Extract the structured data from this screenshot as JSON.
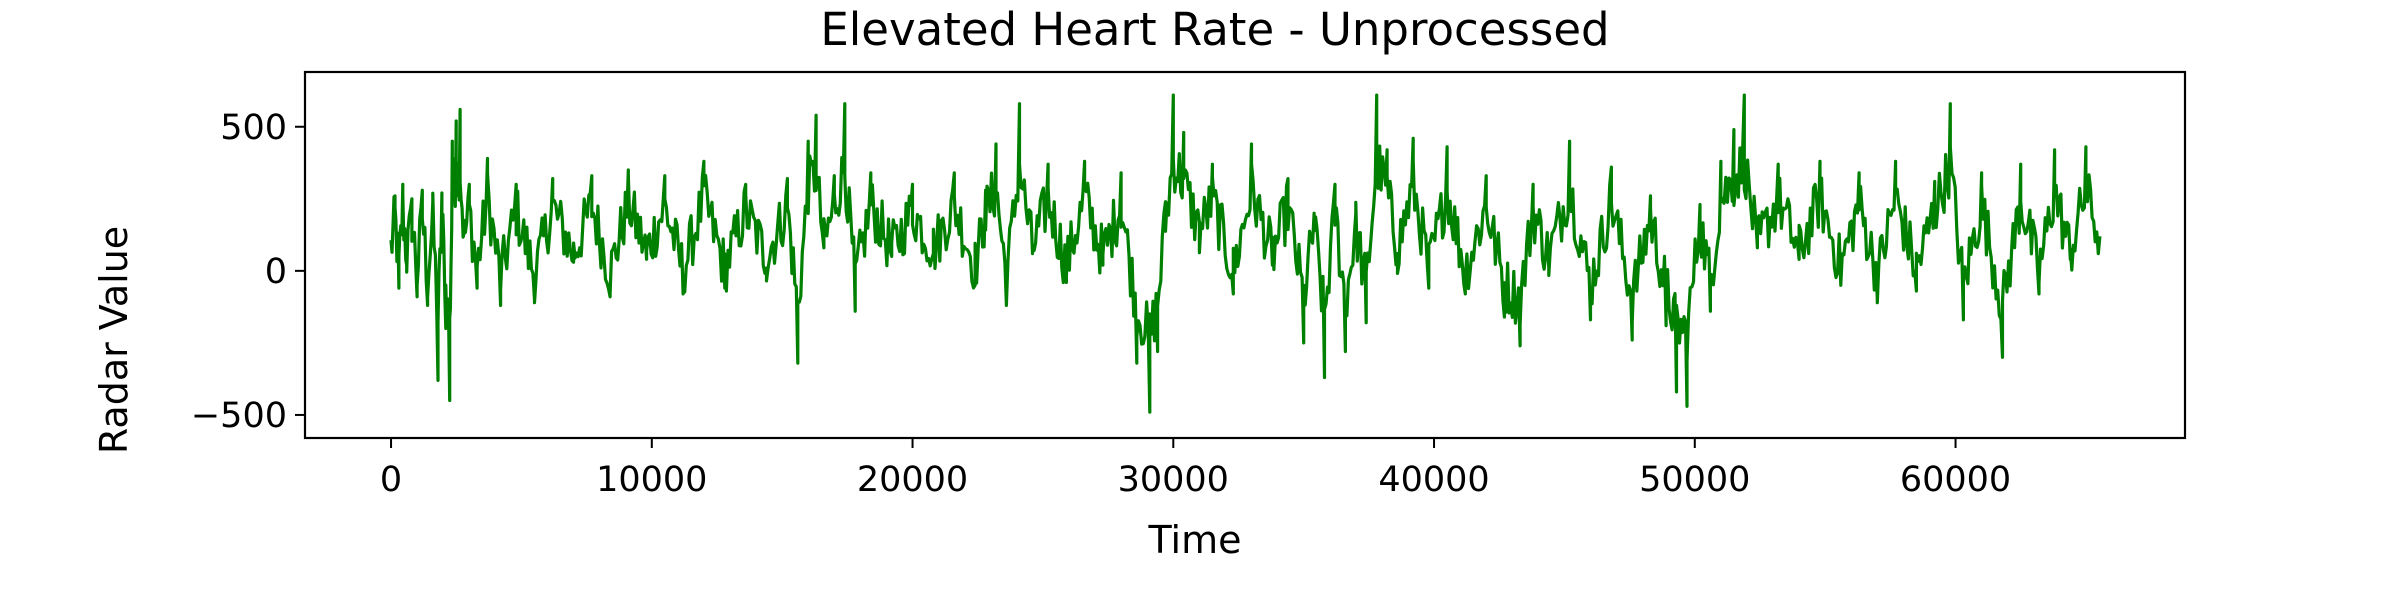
{
  "chart_data": {
    "type": "line",
    "title": "Elevated Heart Rate - Unprocessed",
    "xlabel": "Time",
    "ylabel": "Radar Value",
    "xlim": [
      -3300,
      68800
    ],
    "ylim": [
      -580,
      690
    ],
    "xticks": [
      0,
      10000,
      20000,
      30000,
      40000,
      50000,
      60000
    ],
    "xtick_labels": [
      "0",
      "10000",
      "20000",
      "30000",
      "40000",
      "50000",
      "60000"
    ],
    "yticks": [
      -500,
      0,
      500
    ],
    "ytick_labels": [
      "−500",
      "0",
      "500"
    ],
    "grid": false,
    "legend": "none",
    "series": [
      {
        "color": "#008000",
        "x_range": [
          0,
          65535
        ],
        "points": [
          [
            0,
            60
          ],
          [
            150,
            260
          ],
          [
            300,
            -60
          ],
          [
            450,
            300
          ],
          [
            600,
            20
          ],
          [
            800,
            250
          ],
          [
            1000,
            -90
          ],
          [
            1200,
            280
          ],
          [
            1400,
            -120
          ],
          [
            1600,
            240
          ],
          [
            1800,
            -380
          ],
          [
            1950,
            270
          ],
          [
            2100,
            -200
          ],
          [
            2250,
            -450
          ],
          [
            2350,
            450
          ],
          [
            2500,
            520
          ],
          [
            2650,
            560
          ],
          [
            2800,
            130
          ],
          [
            3000,
            300
          ],
          [
            3300,
            -60
          ],
          [
            3700,
            390
          ],
          [
            4200,
            -120
          ],
          [
            4800,
            300
          ],
          [
            5500,
            -100
          ],
          [
            6200,
            320
          ],
          [
            7000,
            30
          ],
          [
            7700,
            330
          ],
          [
            8400,
            -90
          ],
          [
            9100,
            350
          ],
          [
            9800,
            40
          ],
          [
            10500,
            330
          ],
          [
            11200,
            -80
          ],
          [
            12000,
            380
          ],
          [
            12800,
            -60
          ],
          [
            13600,
            300
          ],
          [
            14400,
            10
          ],
          [
            15200,
            320
          ],
          [
            15600,
            -320
          ],
          [
            16000,
            450
          ],
          [
            16300,
            540
          ],
          [
            16600,
            80
          ],
          [
            17000,
            330
          ],
          [
            17400,
            580
          ],
          [
            17800,
            -140
          ],
          [
            18400,
            340
          ],
          [
            19200,
            50
          ],
          [
            20000,
            300
          ],
          [
            20800,
            60
          ],
          [
            21600,
            340
          ],
          [
            22400,
            -50
          ],
          [
            22800,
            280
          ],
          [
            23200,
            440
          ],
          [
            23600,
            -120
          ],
          [
            24100,
            580
          ],
          [
            24600,
            60
          ],
          [
            25200,
            370
          ],
          [
            25900,
            -40
          ],
          [
            26600,
            380
          ],
          [
            27300,
            20
          ],
          [
            28000,
            340
          ],
          [
            28600,
            -320
          ],
          [
            29100,
            -490
          ],
          [
            29400,
            -280
          ],
          [
            29700,
            240
          ],
          [
            30000,
            610
          ],
          [
            30400,
            480
          ],
          [
            31000,
            170
          ],
          [
            31500,
            370
          ],
          [
            32300,
            -80
          ],
          [
            33000,
            440
          ],
          [
            33800,
            20
          ],
          [
            34400,
            320
          ],
          [
            35000,
            -250
          ],
          [
            35400,
            200
          ],
          [
            35800,
            -370
          ],
          [
            36200,
            300
          ],
          [
            36600,
            -280
          ],
          [
            37000,
            200
          ],
          [
            37400,
            -180
          ],
          [
            37800,
            610
          ],
          [
            38200,
            420
          ],
          [
            38600,
            60
          ],
          [
            39200,
            460
          ],
          [
            39800,
            -60
          ],
          [
            40500,
            430
          ],
          [
            41200,
            -80
          ],
          [
            42000,
            330
          ],
          [
            42700,
            -160
          ],
          [
            43300,
            -260
          ],
          [
            43800,
            300
          ],
          [
            44400,
            10
          ],
          [
            45200,
            450
          ],
          [
            46000,
            -170
          ],
          [
            46800,
            360
          ],
          [
            47600,
            -240
          ],
          [
            48300,
            260
          ],
          [
            48900,
            -190
          ],
          [
            49300,
            -420
          ],
          [
            49700,
            -470
          ],
          [
            50200,
            230
          ],
          [
            50600,
            -140
          ],
          [
            51000,
            380
          ],
          [
            51500,
            490
          ],
          [
            51900,
            610
          ],
          [
            52400,
            80
          ],
          [
            53200,
            370
          ],
          [
            54000,
            40
          ],
          [
            54800,
            380
          ],
          [
            55600,
            -50
          ],
          [
            56300,
            340
          ],
          [
            57000,
            -100
          ],
          [
            57700,
            380
          ],
          [
            58500,
            -70
          ],
          [
            59200,
            310
          ],
          [
            59800,
            580
          ],
          [
            60300,
            -170
          ],
          [
            61000,
            340
          ],
          [
            61800,
            -300
          ],
          [
            62500,
            370
          ],
          [
            63200,
            -80
          ],
          [
            63800,
            420
          ],
          [
            64400,
            40
          ],
          [
            65000,
            430
          ],
          [
            65535,
            120
          ]
        ]
      }
    ]
  }
}
